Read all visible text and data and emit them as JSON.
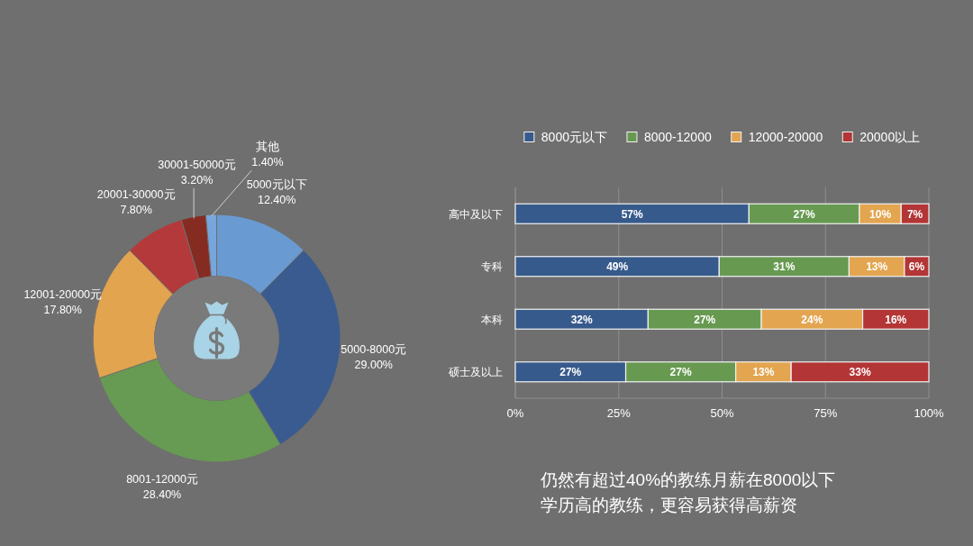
{
  "chart_data": [
    {
      "type": "donut",
      "categories": [
        "5000元以下",
        "5000-8000元",
        "8001-12000元",
        "12001-20000元",
        "20001-30000元",
        "30001-50000元",
        "其他"
      ],
      "values": [
        12.4,
        29.0,
        28.4,
        17.8,
        7.8,
        3.2,
        1.4
      ],
      "value_labels": [
        "12.40%",
        "29.00%",
        "28.40%",
        "17.80%",
        "7.80%",
        "3.20%",
        "1.40%"
      ],
      "colors": [
        "#6a9ad2",
        "#3a5b8f",
        "#679a52",
        "#e2a44f",
        "#b4393a",
        "#862b22",
        "#76a6dc"
      ]
    },
    {
      "type": "bar",
      "orientation": "horizontal",
      "stacked": true,
      "categories": [
        "高中及以下",
        "专科",
        "本科",
        "硕士及以上"
      ],
      "series": [
        {
          "name": "8000元以下",
          "color": "#375a8c",
          "values": [
            56.5,
            49.3,
            32.1,
            26.7
          ],
          "value_labels": [
            "57%",
            "49%",
            "32%",
            "27%"
          ]
        },
        {
          "name": "8000-12000",
          "color": "#679a50",
          "values": [
            26.7,
            31.4,
            27.4,
            26.6
          ],
          "value_labels": [
            "27%",
            "31%",
            "27%",
            "27%"
          ]
        },
        {
          "name": "12000-20000",
          "color": "#e3a54f",
          "values": [
            10.1,
            13.4,
            24.5,
            13.4
          ],
          "value_labels": [
            "10%",
            "13%",
            "24%",
            "13%"
          ]
        },
        {
          "name": "20000以上",
          "color": "#b33535",
          "values": [
            6.7,
            5.9,
            16.0,
            33.3
          ],
          "value_labels": [
            "7%",
            "6%",
            "16%",
            "33%"
          ]
        }
      ],
      "xlim": [
        0,
        100
      ],
      "xticks": [
        {
          "value": 0,
          "label": "0%"
        },
        {
          "value": 25,
          "label": "25%"
        },
        {
          "value": 50,
          "label": "50%"
        },
        {
          "value": 75,
          "label": "75%"
        },
        {
          "value": 100,
          "label": "100%"
        }
      ],
      "grid": "x",
      "legend": "top",
      "annotations": [
        "仍然有超过40%的教练月薪在8000以下",
        "学历高的教练，更容易获得高薪资"
      ]
    }
  ]
}
